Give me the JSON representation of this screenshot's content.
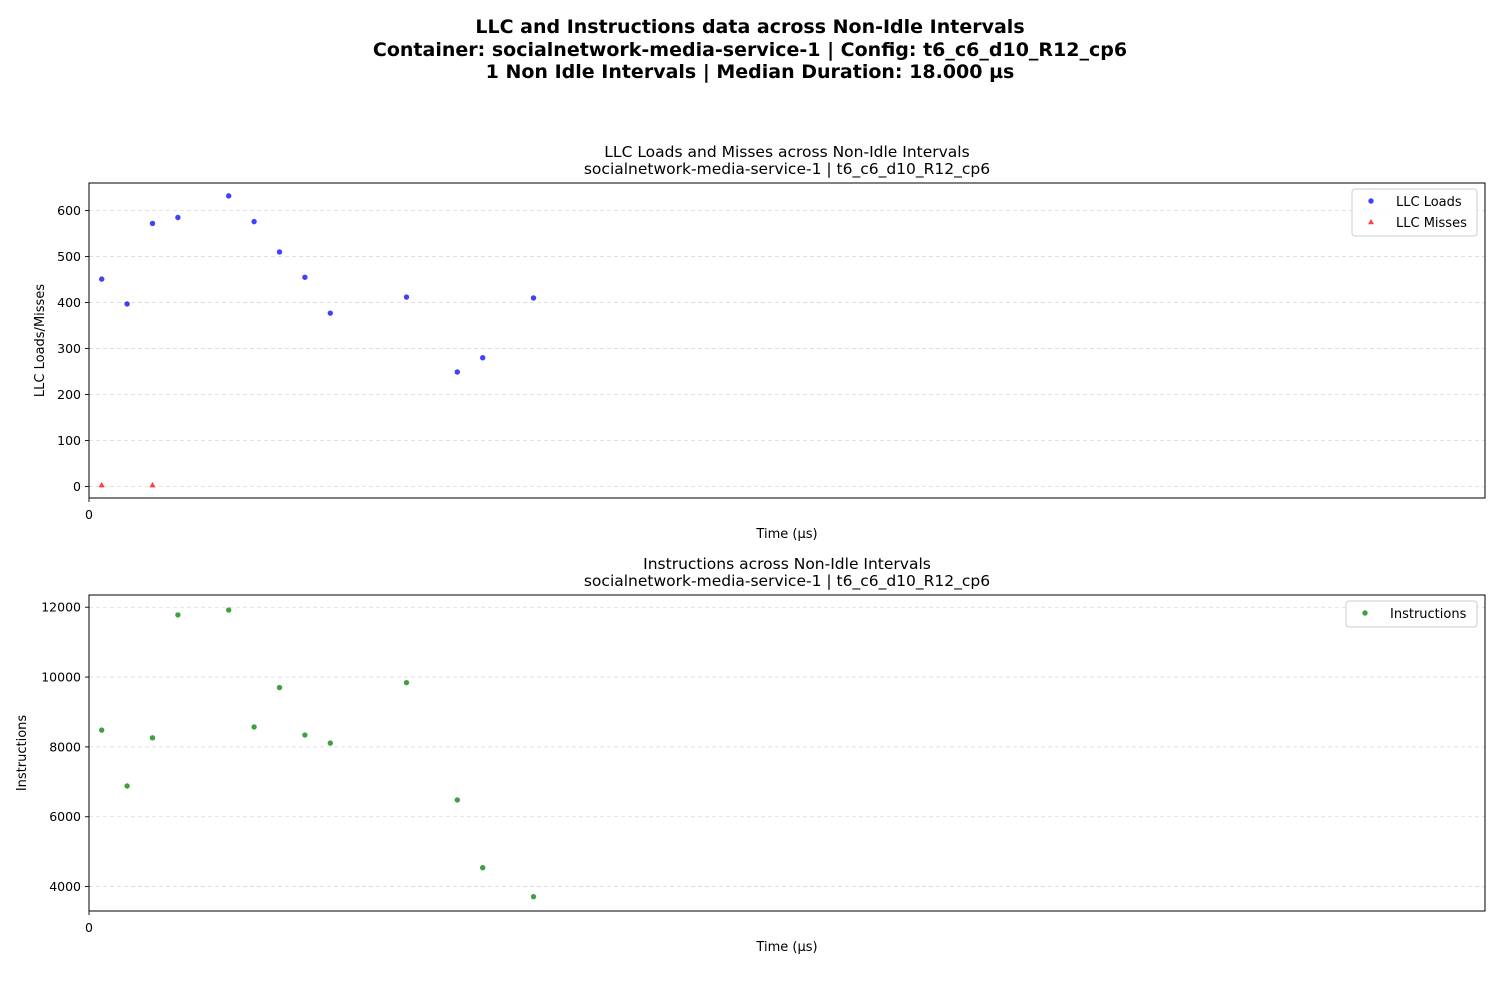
{
  "figure": {
    "suptitle_lines": [
      "LLC and Instructions data across Non-Idle Intervals",
      "Container: socialnetwork-media-service-1 | Config: t6_c6_d10_R12_cp6",
      "1 Non Idle Intervals | Median Duration: 18.000 µs"
    ]
  },
  "chart_data": [
    {
      "type": "scatter",
      "title": "LLC Loads and Misses across Non-Idle Intervals",
      "subtitle": "socialnetwork-media-service-1 | t6_c6_d10_R12_cp6",
      "xlabel": "Time (µs)",
      "ylabel": "LLC Loads/Misses",
      "xticks": [
        "0"
      ],
      "yticks": [
        0,
        100,
        200,
        300,
        400,
        500,
        600
      ],
      "ylim": [
        -25,
        660
      ],
      "grid": true,
      "legend_position": "top-right",
      "series": [
        {
          "name": "LLC Loads",
          "color": "#0000ff",
          "marker": "circle",
          "x": [
            1,
            3,
            5,
            7,
            11,
            13,
            15,
            17,
            19,
            25,
            29,
            31,
            35
          ],
          "y": [
            451,
            397,
            572,
            585,
            632,
            576,
            510,
            455,
            377,
            412,
            249,
            280,
            410
          ]
        },
        {
          "name": "LLC Misses",
          "color": "#ff0000",
          "marker": "triangle",
          "x": [
            1,
            5
          ],
          "y": [
            3,
            3
          ]
        }
      ]
    },
    {
      "type": "scatter",
      "title": "Instructions across Non-Idle Intervals",
      "subtitle": "socialnetwork-media-service-1 | t6_c6_d10_R12_cp6",
      "xlabel": "Time (µs)",
      "ylabel": "Instructions",
      "xticks": [
        "0"
      ],
      "yticks": [
        4000,
        6000,
        8000,
        10000,
        12000
      ],
      "ylim": [
        3300,
        12350
      ],
      "grid": true,
      "legend_position": "top-right",
      "series": [
        {
          "name": "Instructions",
          "color": "#008000",
          "marker": "circle",
          "x": [
            1,
            3,
            5,
            7,
            11,
            13,
            15,
            17,
            19,
            25,
            29,
            31,
            35
          ],
          "y": [
            8480,
            6880,
            8260,
            11780,
            11920,
            8570,
            9700,
            8340,
            8110,
            9840,
            6480,
            4540,
            3710
          ]
        }
      ]
    }
  ]
}
